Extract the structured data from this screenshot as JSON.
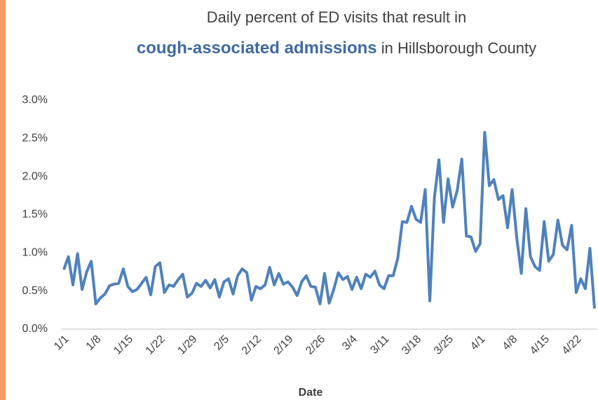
{
  "chart_data": {
    "type": "line",
    "title_line1": "Daily percent of ED visits that result in",
    "title_highlight": "cough-associated admissions",
    "title_rest": "in Hillsborough County",
    "xlabel": "Date",
    "categories": [
      "1/1",
      null,
      null,
      null,
      null,
      null,
      null,
      "1/8",
      null,
      null,
      null,
      null,
      null,
      null,
      "1/15",
      null,
      null,
      null,
      null,
      null,
      null,
      "1/22",
      null,
      null,
      null,
      null,
      null,
      null,
      "1/29",
      null,
      null,
      null,
      null,
      null,
      null,
      "2/5",
      null,
      null,
      null,
      null,
      null,
      null,
      "2/12",
      null,
      null,
      null,
      null,
      null,
      null,
      "2/19",
      null,
      null,
      null,
      null,
      null,
      null,
      "2/26",
      null,
      null,
      null,
      null,
      null,
      null,
      "3/4",
      null,
      null,
      null,
      null,
      null,
      null,
      "3/11",
      null,
      null,
      null,
      null,
      null,
      null,
      "3/18",
      null,
      null,
      null,
      null,
      null,
      null,
      "3/25",
      null,
      null,
      null,
      null,
      null,
      null,
      "4/1",
      null,
      null,
      null,
      null,
      null,
      null,
      "4/8",
      null,
      null,
      null,
      null,
      null,
      null,
      "4/15",
      null,
      null,
      null,
      null,
      null,
      null,
      "4/22",
      null,
      null,
      null,
      null
    ],
    "series": [
      {
        "name": "Percent of ED visits",
        "color": "#4f81bd",
        "values": [
          0.78,
          0.95,
          0.58,
          0.99,
          0.52,
          0.75,
          0.89,
          0.33,
          0.41,
          0.46,
          0.57,
          0.59,
          0.6,
          0.79,
          0.56,
          0.49,
          0.52,
          0.6,
          0.68,
          0.45,
          0.82,
          0.87,
          0.48,
          0.58,
          0.56,
          0.65,
          0.72,
          0.42,
          0.47,
          0.6,
          0.56,
          0.64,
          0.54,
          0.65,
          0.42,
          0.62,
          0.66,
          0.46,
          0.7,
          0.79,
          0.74,
          0.38,
          0.56,
          0.53,
          0.58,
          0.81,
          0.58,
          0.73,
          0.59,
          0.62,
          0.55,
          0.44,
          0.62,
          0.7,
          0.56,
          0.55,
          0.33,
          0.73,
          0.34,
          0.52,
          0.74,
          0.65,
          0.69,
          0.52,
          0.68,
          0.53,
          0.72,
          0.68,
          0.76,
          0.58,
          0.53,
          0.7,
          0.7,
          0.93,
          1.41,
          1.4,
          1.61,
          1.44,
          1.4,
          1.83,
          0.37,
          1.72,
          2.22,
          1.4,
          1.97,
          1.6,
          1.82,
          2.23,
          1.22,
          1.21,
          1.02,
          1.12,
          2.58,
          1.88,
          1.96,
          1.7,
          1.75,
          1.33,
          1.83,
          1.2,
          0.73,
          1.58,
          0.95,
          0.82,
          0.77,
          1.41,
          0.89,
          0.98,
          1.43,
          1.1,
          1.04,
          1.36,
          0.48,
          0.66,
          0.53,
          1.06,
          0.27
        ]
      }
    ],
    "ylim": [
      0,
      3
    ],
    "yticks": [
      {
        "value": 0,
        "label": "0.0%"
      },
      {
        "value": 0.5,
        "label": "0.5%"
      },
      {
        "value": 1,
        "label": "1.0%"
      },
      {
        "value": 1.5,
        "label": "1.5%"
      },
      {
        "value": 2,
        "label": "2.0%"
      },
      {
        "value": 2.5,
        "label": "2.5%"
      },
      {
        "value": 3,
        "label": "3.0%"
      }
    ],
    "grid": false
  }
}
